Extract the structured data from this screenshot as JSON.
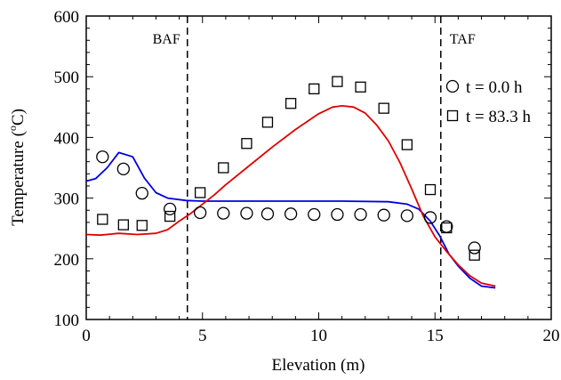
{
  "chart_data": {
    "type": "line",
    "xlabel": "Elevation (m)",
    "ylabel": "Temperature (",
    "ylabel_sup": "o",
    "ylabel_end": "C)",
    "xlim": [
      0,
      20
    ],
    "ylim": [
      100,
      600
    ],
    "x_ticks": [
      0,
      5,
      10,
      15,
      20
    ],
    "y_ticks": [
      100,
      200,
      300,
      400,
      500,
      600
    ],
    "x_tick_labels": [
      "0",
      "5",
      "10",
      "15",
      "20"
    ],
    "y_tick_labels": [
      "100",
      "200",
      "300",
      "400",
      "500",
      "600"
    ],
    "grid": false,
    "legend_position": "top-right",
    "vlines": [
      {
        "x": 4.35,
        "label": "BAF",
        "label_side": "left"
      },
      {
        "x": 15.25,
        "label": "TAF",
        "label_side": "right"
      }
    ],
    "series": [
      {
        "name": "t = 0.0 h",
        "kind": "scatter",
        "marker": "circle",
        "x": [
          0.7,
          1.6,
          2.4,
          3.6,
          4.9,
          5.9,
          6.9,
          7.8,
          8.8,
          9.8,
          10.8,
          11.8,
          12.8,
          13.8,
          14.8,
          15.5,
          16.7
        ],
        "y": [
          368,
          348,
          308,
          282,
          276,
          275,
          275,
          274,
          274,
          273,
          273,
          273,
          272,
          271,
          268,
          253,
          218
        ]
      },
      {
        "name": "t = 83.3 h",
        "kind": "scatter",
        "marker": "square",
        "x": [
          0.7,
          1.6,
          2.4,
          3.6,
          4.9,
          5.9,
          6.9,
          7.8,
          8.8,
          9.8,
          10.8,
          11.8,
          12.8,
          13.8,
          14.8,
          15.5,
          16.7
        ],
        "y": [
          265,
          256,
          255,
          270,
          309,
          350,
          390,
          425,
          456,
          480,
          492,
          483,
          448,
          388,
          314,
          251,
          206
        ]
      },
      {
        "kind": "line",
        "color": "#0000e0",
        "x": [
          0,
          0.4,
          0.9,
          1.4,
          2.0,
          2.5,
          3.0,
          3.5,
          4.3,
          5.0,
          7.0,
          9.0,
          11.0,
          13.0,
          13.8,
          14.3,
          14.8,
          15.2,
          15.6,
          16.0,
          16.5,
          17.0,
          17.6
        ],
        "y": [
          328,
          332,
          350,
          375,
          368,
          333,
          309,
          300,
          296,
          295,
          295,
          295,
          295,
          294,
          290,
          282,
          262,
          238,
          208,
          188,
          168,
          155,
          152
        ]
      },
      {
        "kind": "line",
        "color": "#e00000",
        "x": [
          0,
          0.6,
          1.4,
          2.2,
          3.0,
          3.5,
          4.0,
          4.5,
          5.0,
          5.5,
          6.0,
          7.0,
          8.0,
          9.0,
          10.0,
          10.6,
          11.0,
          11.5,
          12.0,
          12.5,
          13.0,
          13.5,
          14.0,
          14.5,
          15.0,
          15.5,
          16.0,
          16.5,
          17.0,
          17.6
        ],
        "y": [
          240,
          239,
          242,
          240,
          242,
          248,
          262,
          275,
          290,
          305,
          322,
          353,
          384,
          413,
          439,
          450,
          452,
          450,
          440,
          420,
          394,
          358,
          315,
          270,
          236,
          212,
          190,
          172,
          160,
          155
        ]
      }
    ]
  }
}
